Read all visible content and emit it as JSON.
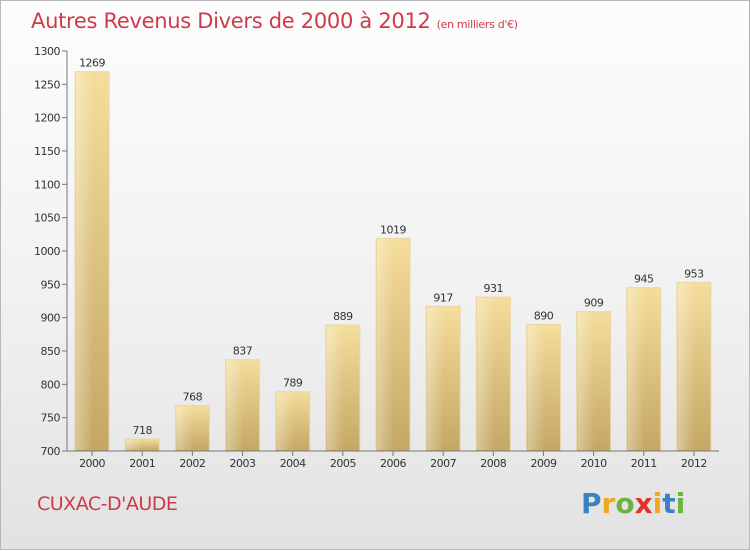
{
  "title": "Autres Revenus Divers de 2000 à 2012",
  "subtitle": "(en milliers d'€)",
  "town": "CUXAC-D'AUDE",
  "brand": {
    "letters": [
      "P",
      "r",
      "o",
      "x",
      "i",
      "t",
      "i"
    ],
    "colors": [
      "#3a82c4",
      "#f0a81c",
      "#6cb33f",
      "#e0342a",
      "#f0a81c",
      "#3a82c4",
      "#6cb33f"
    ]
  },
  "colors": {
    "bar_light": "#f5dd9b",
    "bar_dark": "#c9ad6c",
    "axis": "#777777",
    "title": "#cf3a4a"
  },
  "chart_data": {
    "type": "bar",
    "categories": [
      "2000",
      "2001",
      "2002",
      "2003",
      "2004",
      "2005",
      "2006",
      "2007",
      "2008",
      "2009",
      "2010",
      "2011",
      "2012"
    ],
    "values": [
      1269,
      718,
      768,
      837,
      789,
      889,
      1019,
      917,
      931,
      890,
      909,
      945,
      953
    ],
    "ylim": [
      700,
      1300
    ],
    "yticks": [
      700,
      750,
      800,
      850,
      900,
      950,
      1000,
      1050,
      1100,
      1150,
      1200,
      1250,
      1300
    ],
    "grid": false,
    "legend": "none"
  }
}
